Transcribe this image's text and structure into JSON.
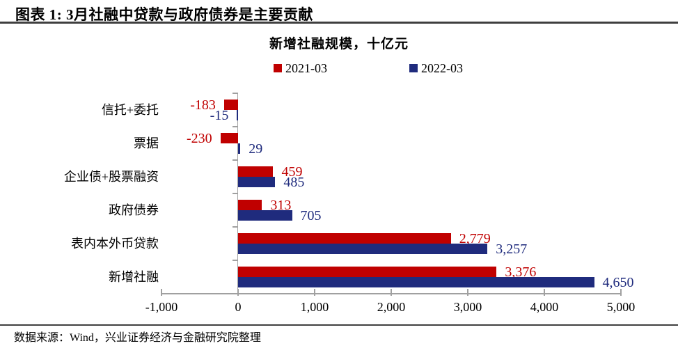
{
  "header": {
    "title": "图表 1: 3月社融中贷款与政府债券是主要贡献"
  },
  "footer": {
    "source": "数据来源：Wind，兴业证券经济与金融研究院整理"
  },
  "colors": {
    "series_2021": "#C00000",
    "series_2022": "#1F2B7D",
    "axis": "#A0A0A0",
    "rule": "#3F3F3F"
  },
  "chart_data": {
    "type": "bar",
    "orientation": "horizontal",
    "title": "新增社融规模，十亿元",
    "categories": [
      "信托+委托",
      "票据",
      "企业债+股票融资",
      "政府债券",
      "表内本外币贷款",
      "新增社融"
    ],
    "series": [
      {
        "name": "2021-03",
        "color": "#C00000",
        "values": [
          -183,
          -230,
          459,
          313,
          2779,
          3376
        ],
        "labels": [
          "-183",
          "-230",
          "459",
          "313",
          "2,779",
          "3,376"
        ]
      },
      {
        "name": "2022-03",
        "color": "#1F2B7D",
        "values": [
          -15,
          29,
          485,
          705,
          3257,
          4650
        ],
        "labels": [
          "-15",
          "29",
          "485",
          "705",
          "3,257",
          "4,650"
        ]
      }
    ],
    "x_ticks": [
      "-1,000",
      "0",
      "1,000",
      "2,000",
      "3,000",
      "4,000",
      "5,000"
    ],
    "x_tick_values": [
      -1000,
      0,
      1000,
      2000,
      3000,
      4000,
      5000
    ],
    "xlim": [
      -1000,
      5000
    ],
    "legend_position": "top",
    "grid": false
  }
}
